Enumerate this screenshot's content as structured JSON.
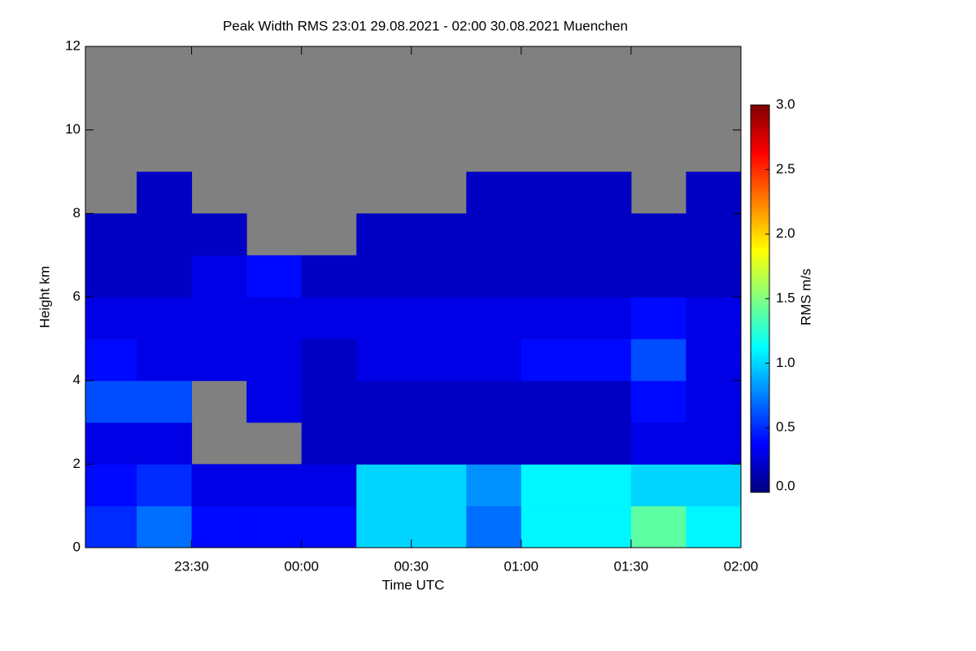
{
  "chart_data": {
    "type": "heatmap",
    "title": "Peak Width RMS   23:01 29.08.2021 - 02:00 30.08.2021 Muenchen",
    "xlabel": "Time UTC",
    "ylabel": "Height km",
    "x_bins": [
      1381,
      1395,
      1410,
      1425,
      1440,
      1455,
      1470,
      1485,
      1500,
      1515,
      1530,
      1545,
      1560
    ],
    "y_bins": [
      0,
      1,
      2,
      3,
      4,
      5,
      6,
      7,
      8,
      9,
      10,
      11,
      12
    ],
    "z": [
      [
        0.5,
        0.7,
        0.4,
        0.4,
        0.4,
        1.0,
        1.0,
        0.7,
        1.1,
        1.1,
        1.4,
        1.1
      ],
      [
        0.4,
        0.5,
        0.3,
        0.3,
        0.3,
        1.0,
        1.0,
        0.8,
        1.1,
        1.1,
        1.0,
        1.0
      ],
      [
        0.3,
        0.3,
        null,
        null,
        0.2,
        0.2,
        0.2,
        0.2,
        0.2,
        0.2,
        0.3,
        0.3
      ],
      [
        0.6,
        0.6,
        null,
        0.3,
        0.2,
        0.2,
        0.2,
        0.2,
        0.2,
        0.2,
        0.4,
        0.3
      ],
      [
        0.4,
        0.3,
        0.3,
        0.3,
        0.2,
        0.3,
        0.3,
        0.3,
        0.4,
        0.4,
        0.6,
        0.3
      ],
      [
        0.3,
        0.3,
        0.3,
        0.3,
        0.3,
        0.3,
        0.3,
        0.3,
        0.3,
        0.3,
        0.4,
        0.3
      ],
      [
        0.2,
        0.2,
        0.3,
        0.4,
        0.2,
        0.2,
        0.2,
        0.2,
        0.2,
        0.2,
        0.2,
        0.2
      ],
      [
        0.2,
        0.2,
        0.2,
        null,
        null,
        0.2,
        0.2,
        0.2,
        0.2,
        0.2,
        0.2,
        0.2
      ],
      [
        null,
        0.2,
        null,
        null,
        null,
        null,
        null,
        0.2,
        0.2,
        0.2,
        null,
        0.2
      ],
      [
        null,
        null,
        null,
        null,
        null,
        null,
        null,
        null,
        null,
        null,
        null,
        null
      ],
      [
        null,
        null,
        null,
        null,
        null,
        null,
        null,
        null,
        null,
        null,
        null,
        null
      ],
      [
        null,
        null,
        null,
        null,
        null,
        null,
        null,
        null,
        null,
        null,
        null,
        null
      ]
    ],
    "xlim": [
      1381,
      1560
    ],
    "ylim": [
      0,
      12
    ],
    "xticks": [
      {
        "value": 1410,
        "label": "23:30"
      },
      {
        "value": 1440,
        "label": "00:00"
      },
      {
        "value": 1470,
        "label": "00:30"
      },
      {
        "value": 1500,
        "label": "01:00"
      },
      {
        "value": 1530,
        "label": "01:30"
      },
      {
        "value": 1560,
        "label": "02:00"
      }
    ],
    "yticks": [
      0,
      2,
      4,
      6,
      8,
      10,
      12
    ],
    "missing_color": "#808080",
    "colorscale": [
      "#000080",
      "#0000ff",
      "#0080ff",
      "#00ffff",
      "#80ff80",
      "#ffff00",
      "#ff8000",
      "#ff0000",
      "#800000"
    ],
    "colorbar": {
      "label": "RMS m/s",
      "lim": [
        0,
        3
      ],
      "ticks": [
        {
          "value": 0,
          "label": "0.0"
        },
        {
          "value": 0.5,
          "label": "0.5"
        },
        {
          "value": 1,
          "label": "1.0"
        },
        {
          "value": 1.5,
          "label": "1.5"
        },
        {
          "value": 2,
          "label": "2.0"
        },
        {
          "value": 2.5,
          "label": "2.5"
        },
        {
          "value": 3,
          "label": "3.0"
        }
      ]
    }
  }
}
